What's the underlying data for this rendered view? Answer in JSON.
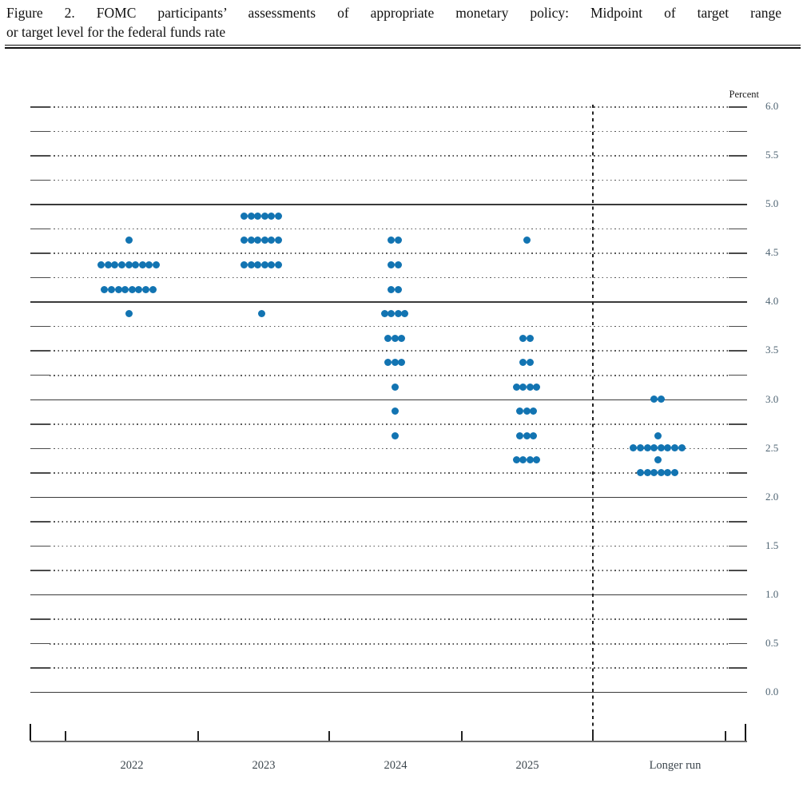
{
  "figure": {
    "title_line1": "Figure 2.  FOMC participants’ assessments of appropriate monetary policy:  Midpoint of target range",
    "title_line2": "or target level for the federal funds rate"
  },
  "chart_data": {
    "type": "scatter",
    "title": "FOMC participants’ assessments of appropriate monetary policy: Midpoint of target range or target level for the federal funds rate",
    "ylabel": "Percent",
    "xlabel": "",
    "ylim": [
      0.0,
      6.0
    ],
    "gridline_step": 0.25,
    "solid_gridlines": [
      0,
      1,
      2,
      3,
      4,
      5
    ],
    "y_tick_step": 0.5,
    "y_tick_labels": [
      "6.0",
      "5.5",
      "5.0",
      "4.5",
      "4.0",
      "3.5",
      "3.0",
      "2.5",
      "2.0",
      "1.5",
      "1.0",
      "0.5",
      "0.0"
    ],
    "grid": true,
    "legend_position": "none",
    "dot_color": "#1274b2",
    "separator_before": "Longer run",
    "categories": [
      "2022",
      "2023",
      "2024",
      "2025",
      "Longer run"
    ],
    "series": [
      {
        "period": "2022",
        "dots": [
          {
            "rate": 4.625,
            "count": 1
          },
          {
            "rate": 4.375,
            "count": 9
          },
          {
            "rate": 4.125,
            "count": 8
          },
          {
            "rate": 3.875,
            "count": 1
          }
        ]
      },
      {
        "period": "2023",
        "dots": [
          {
            "rate": 4.875,
            "count": 6
          },
          {
            "rate": 4.625,
            "count": 6
          },
          {
            "rate": 4.375,
            "count": 6
          },
          {
            "rate": 3.875,
            "count": 1
          }
        ]
      },
      {
        "period": "2024",
        "dots": [
          {
            "rate": 4.625,
            "count": 2
          },
          {
            "rate": 4.375,
            "count": 2
          },
          {
            "rate": 4.125,
            "count": 2
          },
          {
            "rate": 3.875,
            "count": 4
          },
          {
            "rate": 3.625,
            "count": 3
          },
          {
            "rate": 3.375,
            "count": 3
          },
          {
            "rate": 3.125,
            "count": 1
          },
          {
            "rate": 2.875,
            "count": 1
          },
          {
            "rate": 2.625,
            "count": 1
          }
        ]
      },
      {
        "period": "2025",
        "dots": [
          {
            "rate": 4.625,
            "count": 1
          },
          {
            "rate": 3.625,
            "count": 2
          },
          {
            "rate": 3.375,
            "count": 2
          },
          {
            "rate": 3.125,
            "count": 4
          },
          {
            "rate": 2.875,
            "count": 3
          },
          {
            "rate": 2.625,
            "count": 3
          },
          {
            "rate": 2.375,
            "count": 4
          }
        ]
      },
      {
        "period": "Longer run",
        "dots": [
          {
            "rate": 3.0,
            "count": 2
          },
          {
            "rate": 2.625,
            "count": 1
          },
          {
            "rate": 2.5,
            "count": 8
          },
          {
            "rate": 2.375,
            "count": 1
          },
          {
            "rate": 2.25,
            "count": 6
          }
        ]
      }
    ]
  }
}
